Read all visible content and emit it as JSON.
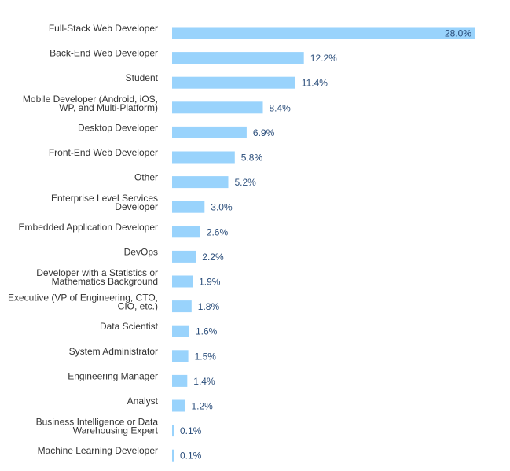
{
  "chart_data": {
    "type": "bar",
    "orientation": "horizontal",
    "categories": [
      [
        "Full-Stack Web Developer"
      ],
      [
        "Back-End Web Developer"
      ],
      [
        "Student"
      ],
      [
        "Mobile Developer (Android, iOS,",
        "WP, and Multi-Platform)"
      ],
      [
        "Desktop Developer"
      ],
      [
        "Front-End Web Developer"
      ],
      [
        "Other"
      ],
      [
        "Enterprise Level Services",
        "Developer"
      ],
      [
        "Embedded Application Developer"
      ],
      [
        "DevOps"
      ],
      [
        "Developer with a Statistics or",
        "Mathematics Background"
      ],
      [
        "Executive (VP of Engineering, CTO,",
        "CIO, etc.)"
      ],
      [
        "Data Scientist"
      ],
      [
        "System Administrator"
      ],
      [
        "Engineering Manager"
      ],
      [
        "Analyst"
      ],
      [
        "Business Intelligence or Data",
        "Warehousing Expert"
      ],
      [
        "Machine Learning Developer"
      ]
    ],
    "values": [
      28.0,
      12.2,
      11.4,
      8.4,
      6.9,
      5.8,
      5.2,
      3.0,
      2.6,
      2.2,
      1.9,
      1.8,
      1.6,
      1.5,
      1.4,
      1.2,
      0.1,
      0.1
    ],
    "value_labels": [
      "28.0%",
      "12.2%",
      "11.4%",
      "8.4%",
      "6.9%",
      "5.8%",
      "5.2%",
      "3.0%",
      "2.6%",
      "2.2%",
      "1.9%",
      "1.8%",
      "1.6%",
      "1.5%",
      "1.4%",
      "1.2%",
      "0.1%",
      "0.1%"
    ],
    "xlim": [
      0,
      28.0
    ],
    "grid": false,
    "legend": "none",
    "bar_color": "#99d3fc",
    "label_color": "#333333",
    "value_color": "#2a4d7a"
  }
}
